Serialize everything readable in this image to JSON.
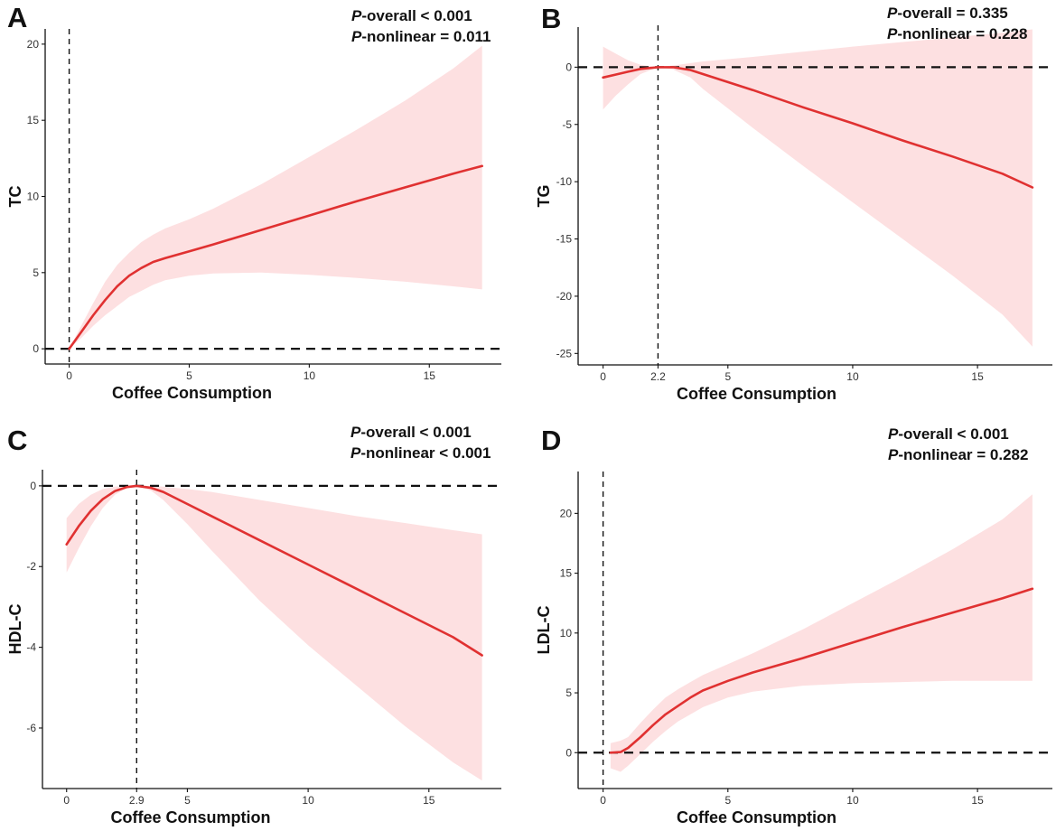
{
  "colors": {
    "curve": "#e03131",
    "band": "#fde0e1",
    "axis": "#111111"
  },
  "chart_data": [
    {
      "panel": "A",
      "type": "line",
      "xlabel": "Coffee Consumption",
      "ylabel": "TC",
      "xlim": [
        -1.0,
        18.0
      ],
      "ylim": [
        -1.0,
        21.0
      ],
      "xticks": [
        0,
        5,
        10,
        15
      ],
      "xtick_labels": [
        "0",
        "5",
        "10",
        "15"
      ],
      "yticks": [
        0,
        5,
        10,
        15,
        20
      ],
      "ytick_labels": [
        "0",
        "5",
        "10",
        "15",
        "20"
      ],
      "ref_x": 0,
      "ref_y": 0,
      "annotation": [
        {
          "p": "P",
          "rest": "-overall < 0.001"
        },
        {
          "p": "P",
          "rest": "-nonlinear = 0.011"
        }
      ],
      "series": [
        {
          "name": "estimate",
          "x": [
            0,
            0.5,
            1,
            1.5,
            2,
            2.5,
            3,
            3.5,
            4,
            5,
            6,
            8,
            10,
            12,
            14,
            16,
            17.2
          ],
          "y": [
            0,
            1.1,
            2.2,
            3.2,
            4.1,
            4.8,
            5.3,
            5.7,
            5.95,
            6.4,
            6.85,
            7.8,
            8.75,
            9.7,
            10.6,
            11.5,
            12.0
          ],
          "lower": [
            0,
            0.7,
            1.5,
            2.2,
            2.8,
            3.4,
            3.8,
            4.2,
            4.5,
            4.8,
            4.95,
            5.0,
            4.85,
            4.65,
            4.4,
            4.1,
            3.9
          ],
          "upper": [
            0,
            1.5,
            3.0,
            4.4,
            5.5,
            6.3,
            7.0,
            7.5,
            7.9,
            8.5,
            9.2,
            10.8,
            12.6,
            14.4,
            16.3,
            18.4,
            19.9
          ]
        }
      ]
    },
    {
      "panel": "B",
      "type": "line",
      "xlabel": "Coffee Consumption",
      "ylabel": "TG",
      "xlim": [
        -1.0,
        18.0
      ],
      "ylim": [
        -26.0,
        3.5
      ],
      "xticks": [
        0,
        2.2,
        5,
        10,
        15
      ],
      "xtick_labels": [
        "0",
        "2.2",
        "5",
        "10",
        "15"
      ],
      "yticks": [
        -25,
        -20,
        -15,
        -10,
        -5,
        0
      ],
      "ytick_labels": [
        "-25",
        "-20",
        "-15",
        "-10",
        "-5",
        "0"
      ],
      "ref_x": 2.2,
      "ref_y": 0,
      "annotation": [
        {
          "p": "P",
          "rest": "-overall = 0.335"
        },
        {
          "p": "P",
          "rest": "-nonlinear = 0.228"
        }
      ],
      "series": [
        {
          "name": "estimate",
          "x": [
            0,
            0.5,
            1,
            1.5,
            2.2,
            2.8,
            3.5,
            4,
            5,
            6,
            8,
            10,
            12,
            14,
            16,
            17.2
          ],
          "y": [
            -0.9,
            -0.65,
            -0.4,
            -0.15,
            0,
            0,
            -0.25,
            -0.6,
            -1.3,
            -2.0,
            -3.5,
            -4.9,
            -6.4,
            -7.8,
            -9.3,
            -10.5
          ],
          "lower": [
            -3.7,
            -2.5,
            -1.5,
            -0.6,
            0,
            -0.2,
            -0.9,
            -1.9,
            -3.6,
            -5.3,
            -8.6,
            -11.8,
            -15.0,
            -18.2,
            -21.6,
            -24.4
          ],
          "upper": [
            1.8,
            1.2,
            0.6,
            0.2,
            0,
            0.15,
            0.35,
            0.5,
            0.7,
            0.9,
            1.35,
            1.8,
            2.2,
            2.6,
            3.0,
            3.3
          ]
        }
      ]
    },
    {
      "panel": "C",
      "type": "line",
      "xlabel": "Coffee Consumption",
      "ylabel": "HDL-C",
      "xlim": [
        -1.0,
        18.0
      ],
      "ylim": [
        -7.5,
        0.4
      ],
      "xticks": [
        0,
        2.9,
        5,
        10,
        15
      ],
      "xtick_labels": [
        "0",
        "2.9",
        "5",
        "10",
        "15"
      ],
      "yticks": [
        -6,
        -4,
        -2,
        0
      ],
      "ytick_labels": [
        "-6",
        "-4",
        "-2",
        "0"
      ],
      "ref_x": 2.9,
      "ref_y": 0,
      "annotation": [
        {
          "p": "P",
          "rest": "-overall < 0.001"
        },
        {
          "p": "P",
          "rest": "-nonlinear < 0.001"
        }
      ],
      "series": [
        {
          "name": "estimate",
          "x": [
            0,
            0.5,
            1,
            1.5,
            2,
            2.5,
            2.9,
            3.5,
            4,
            5,
            6,
            8,
            10,
            12,
            14,
            16,
            17.2
          ],
          "y": [
            -1.45,
            -1.0,
            -0.62,
            -0.33,
            -0.13,
            -0.03,
            0,
            -0.05,
            -0.15,
            -0.45,
            -0.75,
            -1.35,
            -1.95,
            -2.55,
            -3.15,
            -3.75,
            -4.2
          ],
          "lower": [
            -2.15,
            -1.55,
            -1.0,
            -0.55,
            -0.22,
            -0.05,
            0,
            -0.12,
            -0.35,
            -0.95,
            -1.6,
            -2.85,
            -3.95,
            -4.95,
            -5.95,
            -6.85,
            -7.3
          ],
          "upper": [
            -0.8,
            -0.45,
            -0.22,
            -0.08,
            -0.02,
            0,
            0,
            0,
            -0.02,
            -0.08,
            -0.15,
            -0.35,
            -0.55,
            -0.75,
            -0.92,
            -1.1,
            -1.2
          ]
        }
      ]
    },
    {
      "panel": "D",
      "type": "line",
      "xlabel": "Coffee Consumption",
      "ylabel": "LDL-C",
      "xlim": [
        -1.0,
        18.0
      ],
      "ylim": [
        -3.0,
        23.5
      ],
      "xticks": [
        0,
        5,
        10,
        15
      ],
      "xtick_labels": [
        "0",
        "5",
        "10",
        "15"
      ],
      "yticks": [
        0,
        5,
        10,
        15,
        20
      ],
      "ytick_labels": [
        "0",
        "5",
        "10",
        "15",
        "20"
      ],
      "ref_x": 0,
      "ref_y": 0,
      "annotation": [
        {
          "p": "P",
          "rest": "-overall < 0.001"
        },
        {
          "p": "P",
          "rest": "-nonlinear = 0.282"
        }
      ],
      "series": [
        {
          "name": "estimate",
          "x": [
            0.3,
            0.7,
            1,
            1.5,
            2,
            2.5,
            3,
            3.5,
            4,
            5,
            6,
            8,
            10,
            12,
            14,
            16,
            17.2
          ],
          "y": [
            0,
            0.05,
            0.4,
            1.3,
            2.3,
            3.2,
            3.9,
            4.6,
            5.2,
            6.0,
            6.7,
            7.9,
            9.2,
            10.5,
            11.7,
            12.9,
            13.7
          ],
          "lower": [
            -1.3,
            -1.6,
            -1.1,
            -0.1,
            0.9,
            1.8,
            2.6,
            3.2,
            3.8,
            4.6,
            5.1,
            5.6,
            5.8,
            5.9,
            6.0,
            6.0,
            6.0
          ],
          "upper": [
            0.8,
            1.0,
            1.3,
            2.5,
            3.6,
            4.6,
            5.3,
            5.9,
            6.5,
            7.4,
            8.3,
            10.3,
            12.5,
            14.7,
            17.0,
            19.5,
            21.6
          ]
        }
      ]
    }
  ]
}
